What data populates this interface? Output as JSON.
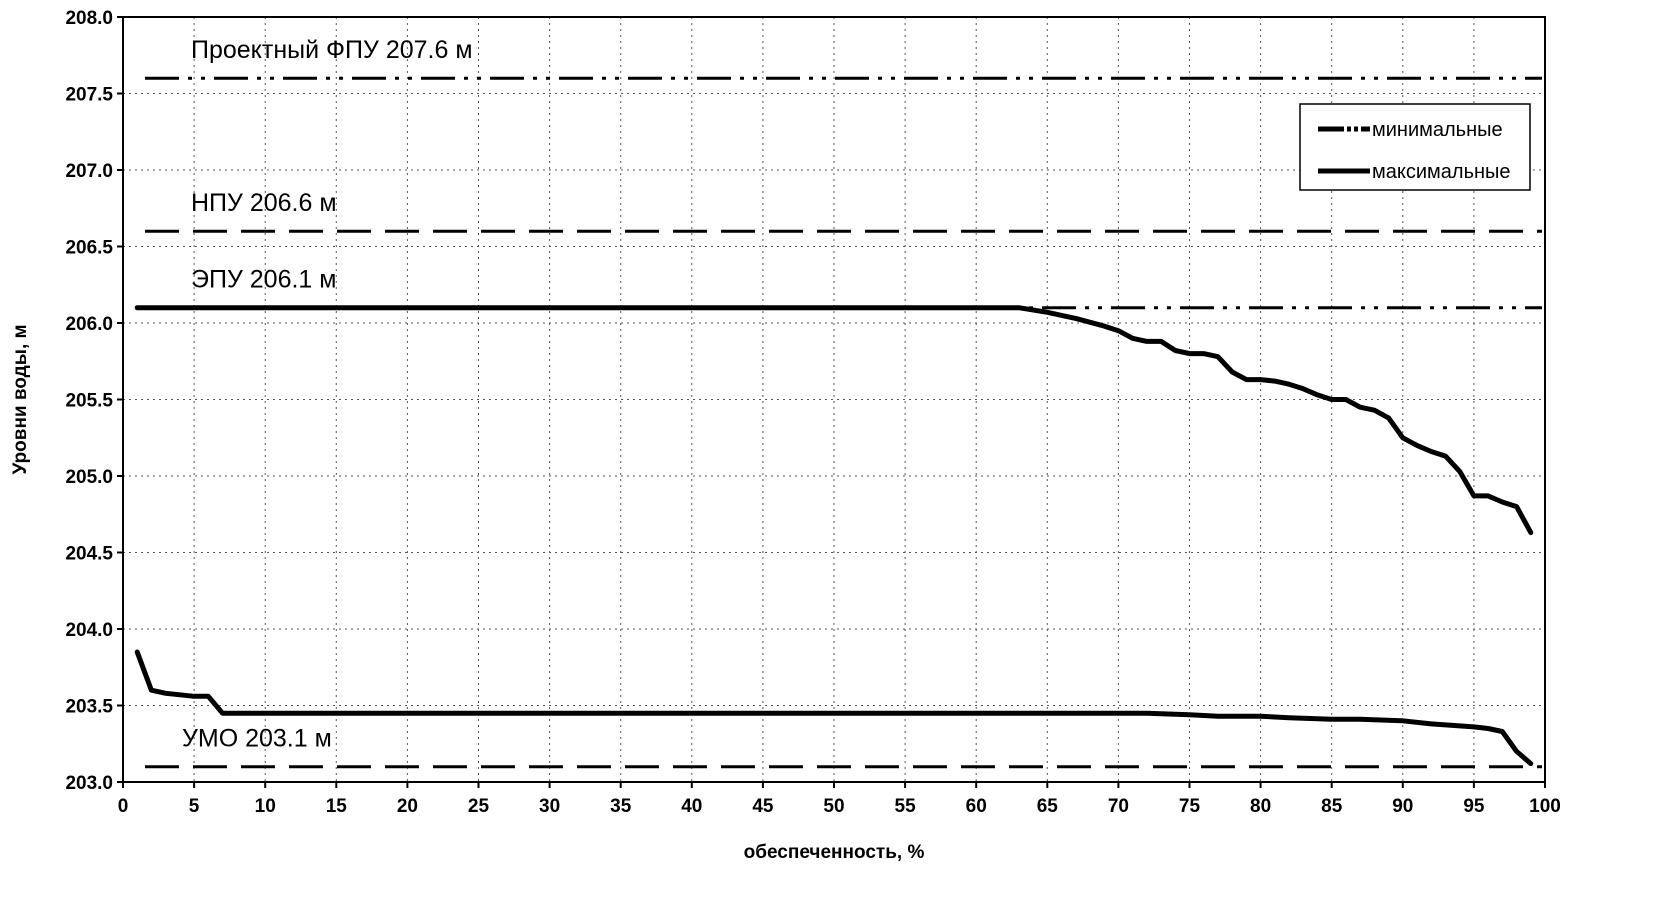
{
  "chart_data": {
    "type": "line",
    "title": "",
    "xlabel": "обеспеченность, %",
    "ylabel": "Уровни воды, м",
    "xlim": [
      0,
      100
    ],
    "ylim": [
      203.0,
      208.0
    ],
    "x_ticks": [
      "0",
      "5",
      "10",
      "15",
      "20",
      "25",
      "30",
      "35",
      "40",
      "45",
      "50",
      "55",
      "60",
      "65",
      "70",
      "75",
      "80",
      "85",
      "90",
      "95",
      "100"
    ],
    "y_ticks": [
      "203.0",
      "203.5",
      "204.0",
      "204.5",
      "205.0",
      "205.5",
      "206.0",
      "206.5",
      "207.0",
      "207.5",
      "208.0"
    ],
    "grid": true,
    "legend_position": "top-right",
    "reference_lines": [
      {
        "label": "Проектный ФПУ 207.6 м",
        "y": 207.6,
        "style": "dash-dot"
      },
      {
        "label": "НПУ 206.6 м",
        "y": 206.6,
        "style": "dash"
      },
      {
        "label": "ЭПУ 206.1 м",
        "y": 206.1,
        "style": "dash-dot"
      },
      {
        "label": "УМО 203.1 м",
        "y": 203.1,
        "style": "dash"
      }
    ],
    "series": [
      {
        "name": "минимальные",
        "x": [
          1,
          2,
          3,
          4,
          5,
          6,
          7,
          10,
          20,
          30,
          40,
          50,
          60,
          70,
          72,
          75,
          77,
          80,
          82,
          85,
          87,
          90,
          92,
          95,
          96,
          97,
          98,
          99
        ],
        "y": [
          203.85,
          203.6,
          203.58,
          203.57,
          203.56,
          203.56,
          203.45,
          203.45,
          203.45,
          203.45,
          203.45,
          203.45,
          203.45,
          203.45,
          203.45,
          203.44,
          203.43,
          203.43,
          203.42,
          203.41,
          203.41,
          203.4,
          203.38,
          203.36,
          203.35,
          203.33,
          203.2,
          203.12
        ]
      },
      {
        "name": "максимальные",
        "x": [
          1,
          10,
          20,
          30,
          40,
          50,
          60,
          63,
          65,
          67,
          69,
          70,
          71,
          72,
          73,
          74,
          75,
          76,
          77,
          78,
          79,
          80,
          81,
          82,
          83,
          84,
          85,
          86,
          87,
          88,
          89,
          90,
          91,
          92,
          93,
          94,
          95,
          96,
          97,
          98,
          99
        ],
        "y": [
          206.1,
          206.1,
          206.1,
          206.1,
          206.1,
          206.1,
          206.1,
          206.1,
          206.07,
          206.03,
          205.98,
          205.95,
          205.9,
          205.88,
          205.88,
          205.82,
          205.8,
          205.8,
          205.78,
          205.68,
          205.63,
          205.63,
          205.62,
          205.6,
          205.57,
          205.53,
          205.5,
          205.5,
          205.45,
          205.43,
          205.38,
          205.25,
          205.2,
          205.16,
          205.13,
          205.03,
          204.87,
          204.87,
          204.83,
          204.8,
          204.63
        ]
      }
    ]
  }
}
